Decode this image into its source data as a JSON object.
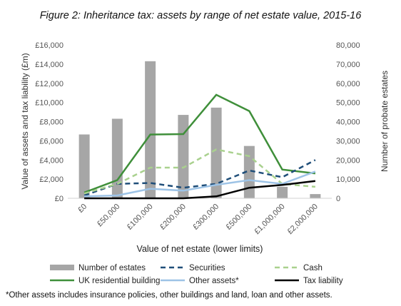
{
  "chart_data": {
    "type": "bar",
    "title": "Figure 2: Inheritance tax: assets by range of net estate value, 2015-16",
    "xlabel": "Value of net estate (lower limits)",
    "ylabel": "Value of assets and tax liability (£m)",
    "y2label": "Number of probate estates",
    "categories": [
      "£0",
      "£50,000",
      "£100,000",
      "£200,000",
      "£300,000",
      "£500,000",
      "£1,000,000",
      "£2,000,000"
    ],
    "ylim": [
      0,
      16000
    ],
    "y2lim": [
      0,
      80000
    ],
    "y_ticks": [
      "£0",
      "£2,000",
      "£4,000",
      "£6,000",
      "£8,000",
      "£10,000",
      "£12,000",
      "£14,000",
      "£16,000"
    ],
    "y2_ticks": [
      "0",
      "10,000",
      "20,000",
      "30,000",
      "40,000",
      "50,000",
      "60,000",
      "70,000",
      "80,000"
    ],
    "bars": {
      "name": "Number of estates",
      "axis": "right",
      "color": "#a6a6a6",
      "values": [
        33300,
        41500,
        71500,
        43500,
        47300,
        27300,
        6000,
        2200
      ]
    },
    "series": [
      {
        "name": "UK residential building",
        "color": "#3f8f3a",
        "dash": "solid",
        "width": 2.5,
        "values": [
          600,
          1900,
          6650,
          6700,
          10800,
          9100,
          3000,
          2600
        ]
      },
      {
        "name": "Securities",
        "color": "#1f4e79",
        "dash": "dashed",
        "width": 2.5,
        "values": [
          300,
          1500,
          1600,
          1100,
          1500,
          2900,
          2200,
          4000
        ]
      },
      {
        "name": "Cash",
        "color": "#a9d18e",
        "dash": "dashed",
        "width": 2.5,
        "values": [
          500,
          1500,
          3200,
          3200,
          5100,
          4400,
          1500,
          1200
        ]
      },
      {
        "name": "Other assets*",
        "color": "#9dc3e6",
        "dash": "solid",
        "width": 2.5,
        "values": [
          200,
          300,
          1000,
          800,
          1400,
          1900,
          1500,
          2800
        ]
      },
      {
        "name": "Tax liability",
        "color": "#000000",
        "dash": "solid",
        "width": 2.5,
        "values": [
          0,
          0,
          0,
          0,
          200,
          1100,
          1400,
          1800
        ]
      }
    ],
    "legend_position": "bottom",
    "grid": false
  },
  "footnote": "*Other assets includes insurance policies, other buildings and land, loan and other assets."
}
